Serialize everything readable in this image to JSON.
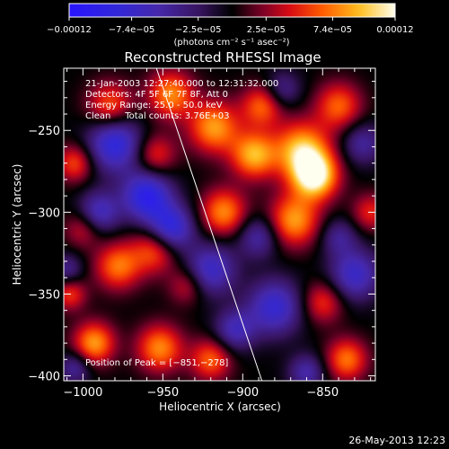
{
  "chart_data": {
    "type": "heatmap",
    "title": "Reconstructed RHESSI Image",
    "xlabel": "Heliocentric X (arcsec)",
    "ylabel": "Heliocentric Y (arcsec)",
    "xlim": [
      -1012,
      -817
    ],
    "ylim": [
      -403,
      -212
    ],
    "x_ticks": [
      -1000,
      -950,
      -900,
      -850
    ],
    "x_tick_labels": [
      "−1000",
      "−950",
      "−900",
      "−850"
    ],
    "y_ticks": [
      -250,
      -300,
      -350,
      -400
    ],
    "y_tick_labels": [
      "−250",
      "−300",
      "−350",
      "−400"
    ],
    "colorbar": {
      "min": -0.00012,
      "max": 0.00012,
      "tick_labels": [
        "−0.00012",
        "−7.4e−05",
        "−2.5e−05",
        "2.5e−05",
        "7.4e−05",
        "0.00012"
      ],
      "unit_label": "(photons cm⁻² s⁻¹ asec⁻²)"
    },
    "annotations": [
      "21-Jan-2003 12:27:40.000 to 12:31:32.000",
      "Detectors: 4F 5F 6F 7F 8F, Att 0",
      "Energy Range: 25.0 - 50.0 keV",
      "Clean     Total counts: 3.76E+03"
    ],
    "peak_label": "Position of Peak = [−851,−278]",
    "peak": {
      "x": -851,
      "y": -278
    },
    "limb_line": {
      "x": [
        -954,
        -888
      ],
      "y": [
        -212,
        -403
      ]
    },
    "grid": false,
    "blobs": [
      {
        "x": -855,
        "y": -278,
        "v": 1.0,
        "s": 10
      },
      {
        "x": -863,
        "y": -262,
        "v": 0.8,
        "s": 12
      },
      {
        "x": -893,
        "y": -265,
        "v": 0.75,
        "s": 10
      },
      {
        "x": -912,
        "y": -300,
        "v": 0.65,
        "s": 10
      },
      {
        "x": -868,
        "y": -305,
        "v": 0.7,
        "s": 11
      },
      {
        "x": -918,
        "y": -248,
        "v": 0.7,
        "s": 11
      },
      {
        "x": -945,
        "y": -228,
        "v": 0.65,
        "s": 10
      },
      {
        "x": -955,
        "y": -265,
        "v": 0.45,
        "s": 9
      },
      {
        "x": -840,
        "y": -235,
        "v": 0.55,
        "s": 10
      },
      {
        "x": -983,
        "y": -235,
        "v": 0.55,
        "s": 10
      },
      {
        "x": -1005,
        "y": -270,
        "v": 0.5,
        "s": 8
      },
      {
        "x": -978,
        "y": -333,
        "v": 0.6,
        "s": 10
      },
      {
        "x": -955,
        "y": -323,
        "v": 0.55,
        "s": 10
      },
      {
        "x": -993,
        "y": -380,
        "v": 0.7,
        "s": 9
      },
      {
        "x": -952,
        "y": -383,
        "v": 0.65,
        "s": 10
      },
      {
        "x": -920,
        "y": -390,
        "v": 0.55,
        "s": 9
      },
      {
        "x": -835,
        "y": -390,
        "v": 0.6,
        "s": 9
      },
      {
        "x": -850,
        "y": -355,
        "v": 0.45,
        "s": 9
      },
      {
        "x": -1008,
        "y": -350,
        "v": 0.45,
        "s": 7
      },
      {
        "x": -888,
        "y": -235,
        "v": 0.55,
        "s": 9
      },
      {
        "x": -935,
        "y": -345,
        "v": 0.35,
        "s": 8
      },
      {
        "x": -820,
        "y": -300,
        "v": 0.4,
        "s": 8
      },
      {
        "x": -1000,
        "y": -310,
        "v": 0.35,
        "s": 8
      },
      {
        "x": -980,
        "y": -258,
        "v": -0.75,
        "s": 12
      },
      {
        "x": -960,
        "y": -290,
        "v": -0.8,
        "s": 11
      },
      {
        "x": -945,
        "y": -310,
        "v": -0.75,
        "s": 10
      },
      {
        "x": -990,
        "y": -300,
        "v": -0.55,
        "s": 9
      },
      {
        "x": -920,
        "y": -335,
        "v": -0.6,
        "s": 11
      },
      {
        "x": -880,
        "y": -358,
        "v": -0.65,
        "s": 12
      },
      {
        "x": -905,
        "y": -372,
        "v": -0.5,
        "s": 9
      },
      {
        "x": -830,
        "y": -338,
        "v": -0.6,
        "s": 11
      },
      {
        "x": -890,
        "y": -315,
        "v": -0.45,
        "s": 9
      },
      {
        "x": -840,
        "y": -315,
        "v": -0.35,
        "s": 8
      },
      {
        "x": -875,
        "y": -225,
        "v": -0.35,
        "s": 8
      },
      {
        "x": -1005,
        "y": -395,
        "v": -0.4,
        "s": 7
      },
      {
        "x": -860,
        "y": -398,
        "v": -0.45,
        "s": 8
      },
      {
        "x": -825,
        "y": -258,
        "v": -0.4,
        "s": 9
      },
      {
        "x": -1010,
        "y": -335,
        "v": -0.35,
        "s": 7
      }
    ]
  },
  "footer": {
    "timestamp": "26-May-2013 12:23"
  },
  "colors": {
    "background": "#000000",
    "foreground": "#ffffff"
  }
}
